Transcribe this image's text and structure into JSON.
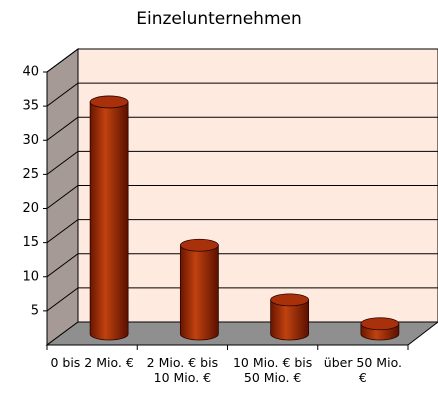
{
  "chart_data": {
    "type": "bar",
    "title": "Einzelunternehmen",
    "categories": [
      "0 bis 2 Mio. €",
      "2 Mio. € bis 10 Mio. €",
      "10 Mio. € bis 50 Mio. €",
      "über 50 Mio. €"
    ],
    "values": [
      34,
      13,
      5,
      1.5
    ],
    "color": "#a8300a",
    "ylim": [
      0,
      40
    ],
    "yticks": [
      5,
      10,
      15,
      20,
      25,
      30,
      35,
      40
    ],
    "grid": true
  }
}
